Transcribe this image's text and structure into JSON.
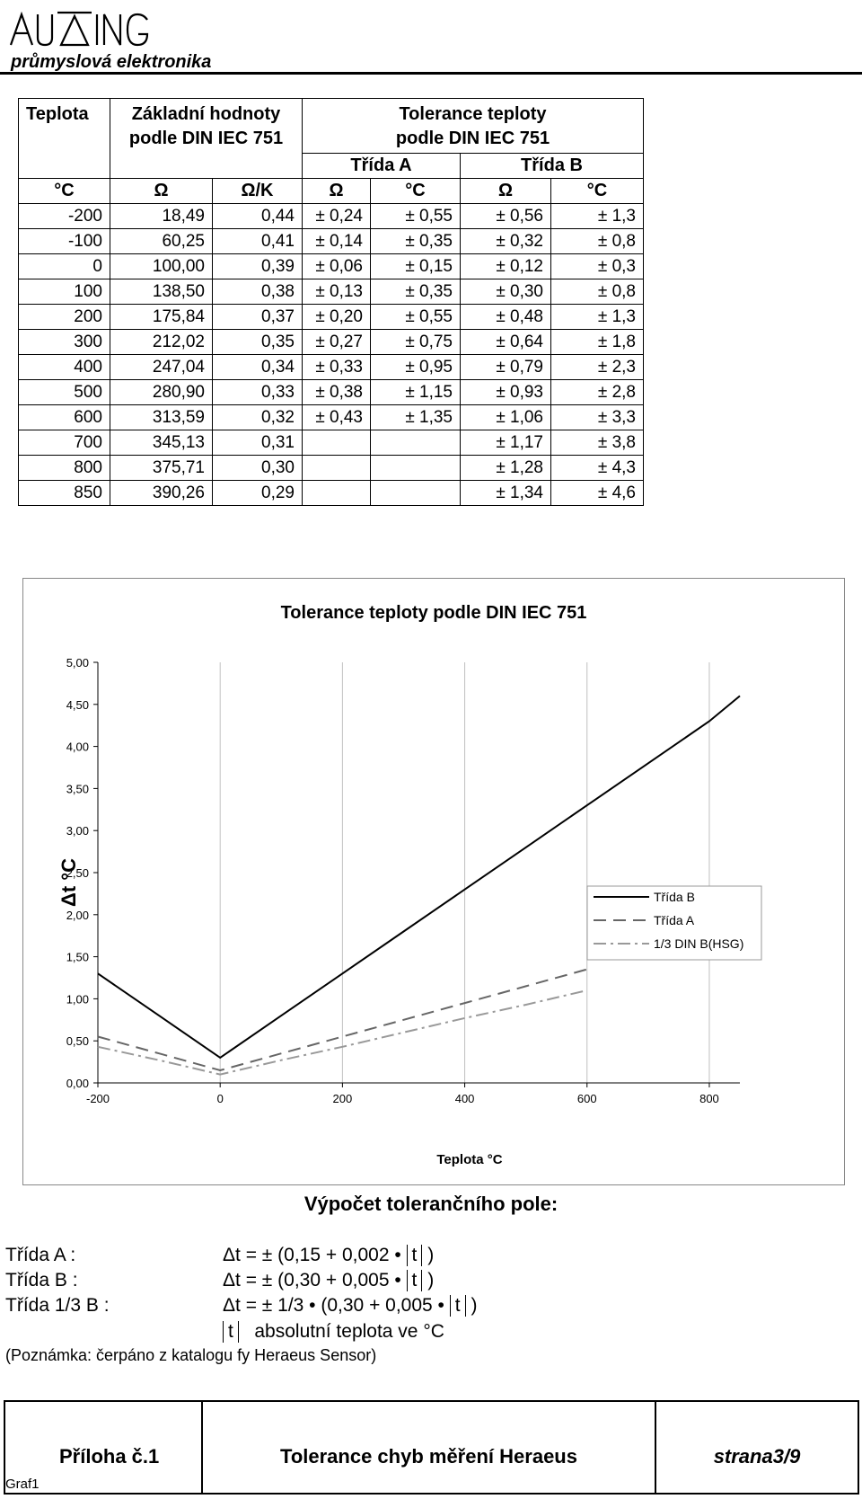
{
  "header": {
    "logo_text": "AUTING",
    "tagline": "průmyslová elektronika"
  },
  "table": {
    "col_temp": "Teplota",
    "col_base": "Základní hodnoty podle DIN IEC 751",
    "col_base_line1": "Základní hodnoty",
    "col_base_line2": "podle DIN IEC 751",
    "col_tol_line1": "Tolerance teploty",
    "col_tol_line2": "podle DIN IEC 751",
    "class_a": "Třída A",
    "class_b": "Třída B",
    "units": [
      "°C",
      "Ω",
      "Ω/K",
      "Ω",
      "°C",
      "Ω",
      "°C"
    ],
    "rows": [
      [
        "-200",
        "18,49",
        "0,44",
        "± 0,24",
        "± 0,55",
        "± 0,56",
        "± 1,3"
      ],
      [
        "-100",
        "60,25",
        "0,41",
        "± 0,14",
        "± 0,35",
        "± 0,32",
        "± 0,8"
      ],
      [
        "0",
        "100,00",
        "0,39",
        "± 0,06",
        "± 0,15",
        "± 0,12",
        "± 0,3"
      ],
      [
        "100",
        "138,50",
        "0,38",
        "± 0,13",
        "± 0,35",
        "± 0,30",
        "± 0,8"
      ],
      [
        "200",
        "175,84",
        "0,37",
        "± 0,20",
        "± 0,55",
        "± 0,48",
        "± 1,3"
      ],
      [
        "300",
        "212,02",
        "0,35",
        "± 0,27",
        "± 0,75",
        "± 0,64",
        "± 1,8"
      ],
      [
        "400",
        "247,04",
        "0,34",
        "± 0,33",
        "± 0,95",
        "± 0,79",
        "± 2,3"
      ],
      [
        "500",
        "280,90",
        "0,33",
        "± 0,38",
        "± 1,15",
        "± 0,93",
        "± 2,8"
      ],
      [
        "600",
        "313,59",
        "0,32",
        "± 0,43",
        "± 1,35",
        "± 1,06",
        "± 3,3"
      ],
      [
        "700",
        "345,13",
        "0,31",
        "",
        "",
        "± 1,17",
        "± 3,8"
      ],
      [
        "800",
        "375,71",
        "0,30",
        "",
        "",
        "± 1,28",
        "± 4,3"
      ],
      [
        "850",
        "390,26",
        "0,29",
        "",
        "",
        "± 1,34",
        "± 4,6"
      ]
    ]
  },
  "chart_data": {
    "type": "line",
    "title": "Tolerance teploty podle DIN IEC 751",
    "xlabel": "Teplota °C",
    "ylabel": "Δt °C",
    "xlim": [
      -200,
      850
    ],
    "ylim": [
      0,
      5
    ],
    "x_ticks": [
      "-200",
      "0",
      "200",
      "400",
      "600",
      "800"
    ],
    "y_ticks": [
      "0,00",
      "0,50",
      "1,00",
      "1,50",
      "2,00",
      "2,50",
      "3,00",
      "3,50",
      "4,00",
      "4,50",
      "5,00"
    ],
    "grid": "vertical",
    "legend_position": "right",
    "series": [
      {
        "name": "Třída B",
        "style": "solid",
        "x": [
          -200,
          -100,
          0,
          100,
          200,
          300,
          400,
          500,
          600,
          700,
          800,
          850
        ],
        "values": [
          1.3,
          0.8,
          0.3,
          0.8,
          1.3,
          1.8,
          2.3,
          2.8,
          3.3,
          3.8,
          4.3,
          4.6
        ]
      },
      {
        "name": "Třída A",
        "style": "dashed",
        "x": [
          -200,
          -100,
          0,
          100,
          200,
          300,
          400,
          500,
          600
        ],
        "values": [
          0.55,
          0.35,
          0.15,
          0.35,
          0.55,
          0.75,
          0.95,
          1.15,
          1.35
        ]
      },
      {
        "name": "1/3 DIN B(HSG)",
        "style": "dashdot",
        "x": [
          -200,
          -100,
          0,
          100,
          200,
          300,
          400,
          500,
          600
        ],
        "values": [
          0.43,
          0.27,
          0.1,
          0.27,
          0.43,
          0.6,
          0.77,
          0.93,
          1.1
        ]
      }
    ]
  },
  "calc": {
    "title": "Výpočet tolerančního pole:",
    "rows": [
      {
        "label": "Třída A :",
        "prefix": "Δt = ± (0,15 + 0,002 •",
        "var": "t",
        "suffix": ")"
      },
      {
        "label": "Třída B :",
        "prefix": "Δt = ± (0,30 + 0,005 •",
        "var": "t",
        "suffix": ")"
      },
      {
        "label": "Třída 1/3 B :",
        "prefix": "Δt = ± 1/3 • (0,30 + 0,005 •",
        "var": "t",
        "suffix": ")"
      }
    ],
    "abs_var": "t",
    "abs_desc": "absolutní teplota ve °C",
    "note": "(Poznámka: čerpáno z katalogu fy Heraeus Sensor)"
  },
  "footer": {
    "attachment": "Příloha č.1",
    "title": "Tolerance chyb měření Heraeus",
    "page": "strana3/9",
    "sheet": "Graf1"
  },
  "colors": {
    "ink": "#000000",
    "grid": "#c0c0c0",
    "class_a_line": "#666666",
    "third_line": "#999999"
  }
}
